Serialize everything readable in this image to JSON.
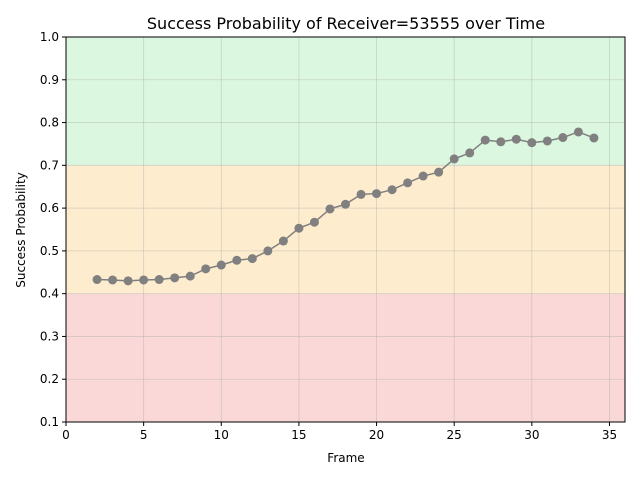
{
  "chart_data": {
    "type": "line",
    "title": "Success Probability of Receiver=53555 over Time",
    "xlabel": "Frame",
    "ylabel": "Success Probability",
    "xlim": [
      0,
      36
    ],
    "ylim": [
      0.1,
      1.0
    ],
    "x_ticks": [
      0,
      5,
      10,
      15,
      20,
      25,
      30,
      35
    ],
    "y_ticks": [
      0.1,
      0.2,
      0.3,
      0.4,
      0.5,
      0.6,
      0.7,
      0.8,
      0.9,
      1.0
    ],
    "x_tick_labels": [
      "0",
      "5",
      "10",
      "15",
      "20",
      "25",
      "30",
      "35"
    ],
    "y_tick_labels": [
      "0.1",
      "0.2",
      "0.3",
      "0.4",
      "0.5",
      "0.6",
      "0.7",
      "0.8",
      "0.9",
      "1.0"
    ],
    "grid": true,
    "bands": [
      {
        "from": 0.1,
        "to": 0.4,
        "color": "#f9d8d7"
      },
      {
        "from": 0.4,
        "to": 0.7,
        "color": "#feecce"
      },
      {
        "from": 0.7,
        "to": 1.0,
        "color": "#dcf7df"
      }
    ],
    "series": [
      {
        "color": "#808080",
        "x": [
          2,
          3,
          4,
          5,
          6,
          7,
          8,
          9,
          10,
          11,
          12,
          13,
          14,
          15,
          16,
          17,
          18,
          19,
          20,
          21,
          22,
          23,
          24,
          25,
          26,
          27,
          28,
          29,
          30,
          31,
          32,
          33,
          34
        ],
        "y": [
          0.433,
          0.432,
          0.43,
          0.432,
          0.433,
          0.437,
          0.441,
          0.458,
          0.467,
          0.478,
          0.482,
          0.5,
          0.523,
          0.553,
          0.567,
          0.598,
          0.609,
          0.632,
          0.634,
          0.643,
          0.659,
          0.675,
          0.684,
          0.715,
          0.729,
          0.759,
          0.755,
          0.761,
          0.753,
          0.757,
          0.765,
          0.778,
          0.764
        ]
      }
    ]
  }
}
